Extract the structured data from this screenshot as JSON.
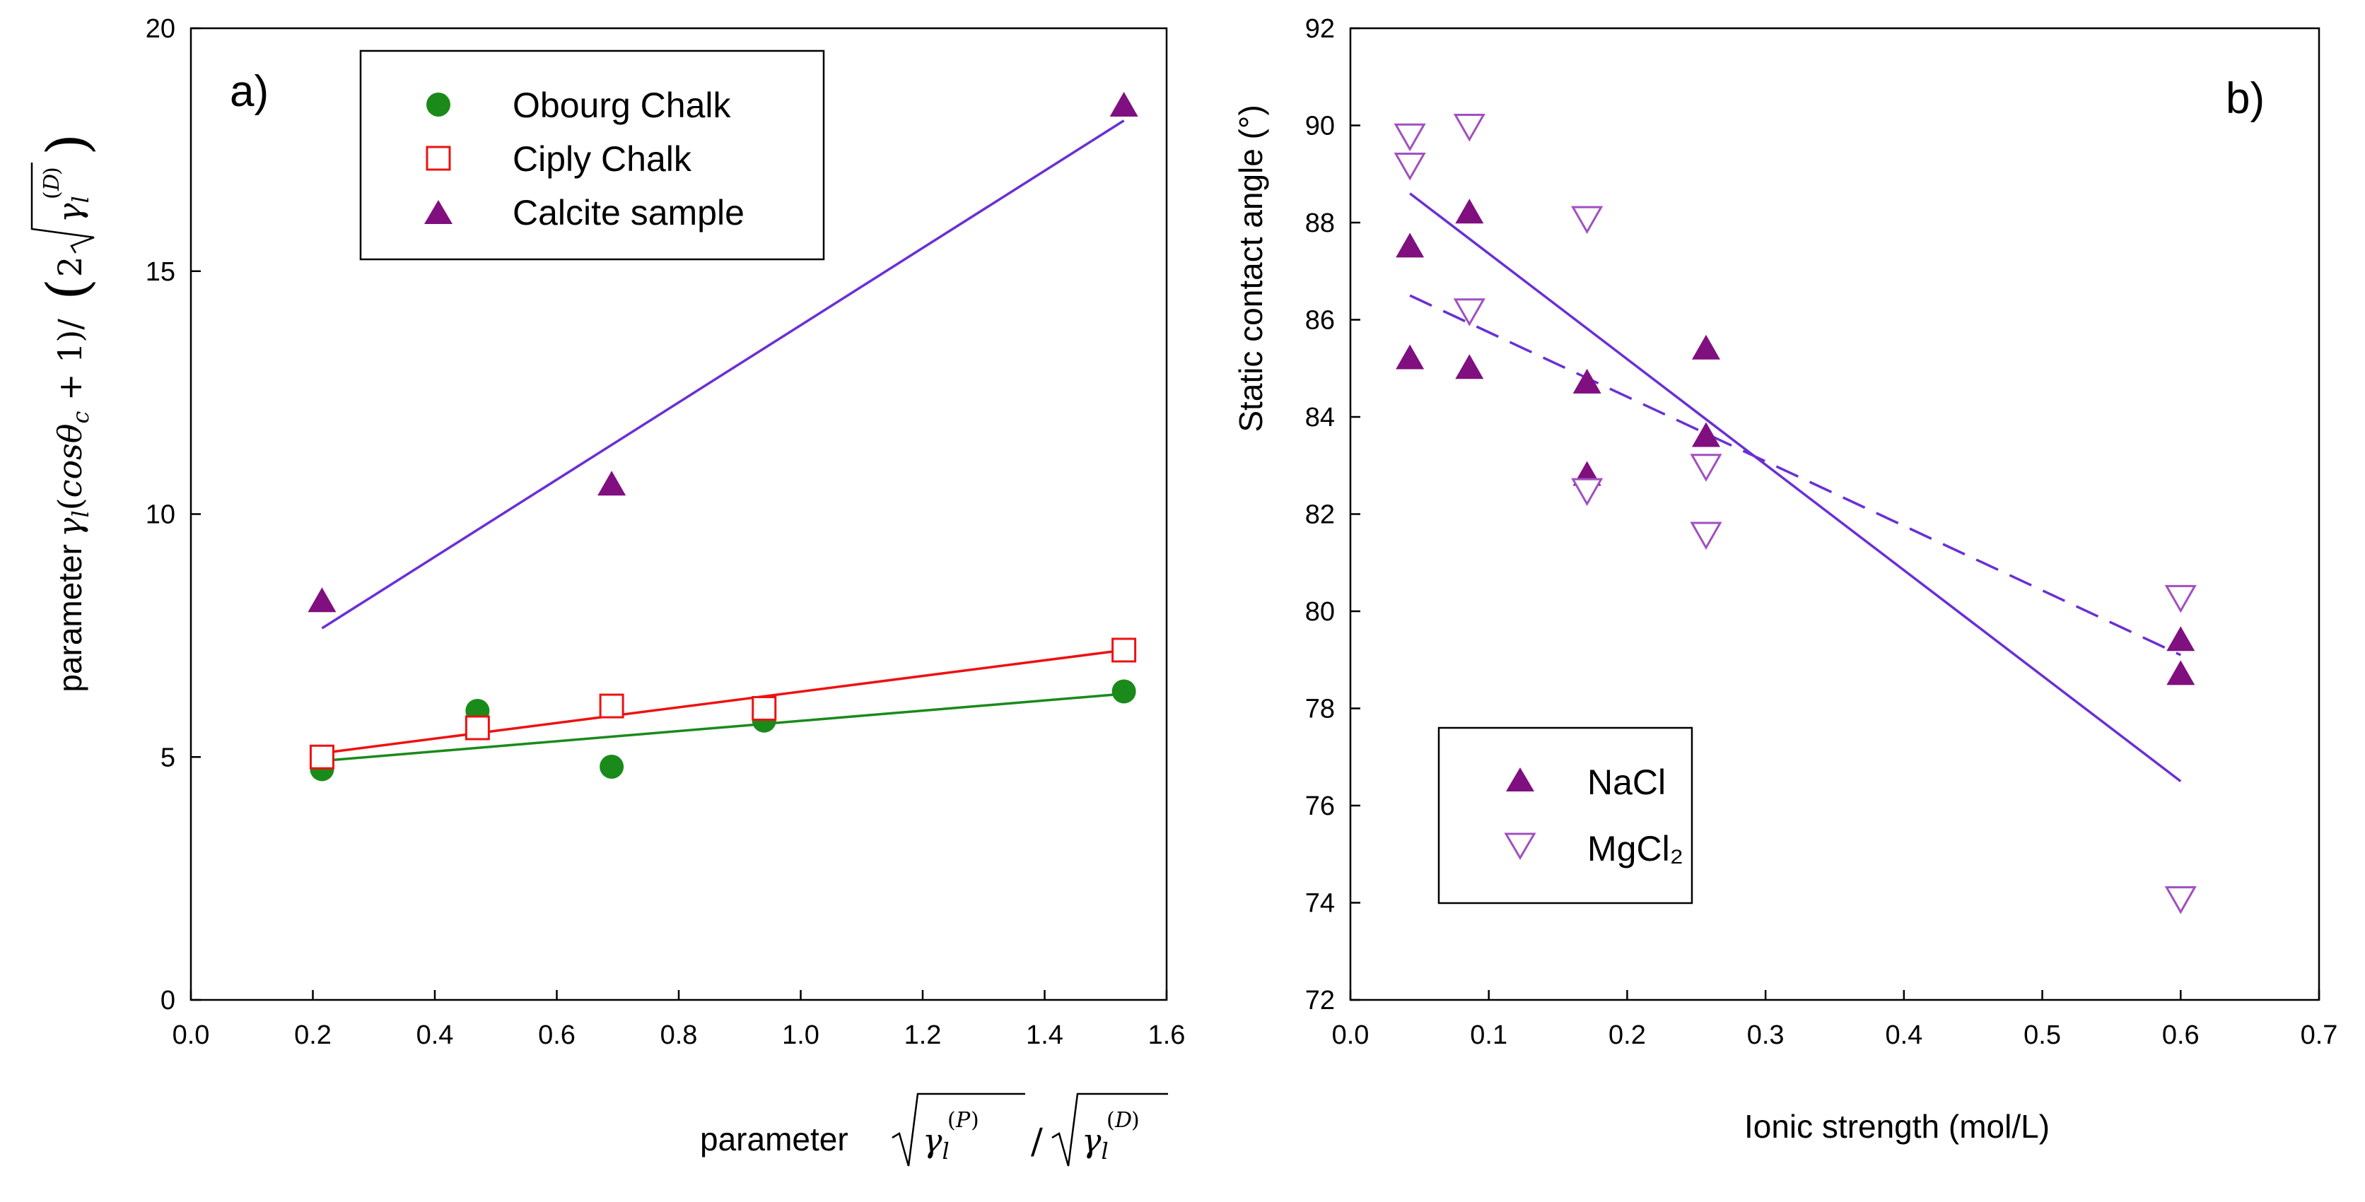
{
  "chart_data": [
    {
      "type": "scatter",
      "panel_label": "a)",
      "xlabel_prefix": "parameter",
      "ylabel_prefix": "parameter",
      "xlim": [
        0.0,
        1.6
      ],
      "ylim": [
        0,
        20
      ],
      "x_ticks": [
        "0.0",
        "0.2",
        "0.4",
        "0.6",
        "0.8",
        "1.0",
        "1.2",
        "1.4",
        "1.6"
      ],
      "y_ticks": [
        "0",
        "5",
        "10",
        "15",
        "20"
      ],
      "legend_position": "top-left",
      "series": [
        {
          "name": "Obourg Chalk",
          "marker": "circle-filled",
          "color": "#1a8a1a",
          "points": [
            [
              0.215,
              4.75
            ],
            [
              0.47,
              5.95
            ],
            [
              0.69,
              4.8
            ],
            [
              0.94,
              5.75
            ],
            [
              1.53,
              6.35
            ]
          ],
          "fit": [
            [
              0.215,
              4.92
            ],
            [
              1.53,
              6.3
            ]
          ]
        },
        {
          "name": "Ciply Chalk",
          "marker": "square-open",
          "color": "#ee1111",
          "points": [
            [
              0.215,
              5.0
            ],
            [
              0.47,
              5.6
            ],
            [
              0.69,
              6.05
            ],
            [
              0.94,
              6.0
            ],
            [
              1.53,
              7.2
            ]
          ],
          "fit": [
            [
              0.215,
              5.08
            ],
            [
              1.53,
              7.2
            ]
          ]
        },
        {
          "name": "Calcite sample",
          "marker": "triangle-up-filled",
          "color": "#800f80",
          "line_color": "#6a2fd6",
          "points": [
            [
              0.215,
              8.2
            ],
            [
              0.69,
              10.6
            ],
            [
              1.53,
              18.4
            ]
          ],
          "fit": [
            [
              0.215,
              7.65
            ],
            [
              1.53,
              18.1
            ]
          ]
        }
      ]
    },
    {
      "type": "scatter",
      "panel_label": "b)",
      "xlabel": "Ionic strength (mol/L)",
      "ylabel": "Static contact angle (°)",
      "xlim": [
        0.0,
        0.7
      ],
      "ylim": [
        72,
        92
      ],
      "x_ticks": [
        "0.0",
        "0.1",
        "0.2",
        "0.3",
        "0.4",
        "0.5",
        "0.6",
        "0.7"
      ],
      "y_ticks": [
        "72",
        "74",
        "76",
        "78",
        "80",
        "82",
        "84",
        "86",
        "88",
        "90",
        "92"
      ],
      "legend_position": "bottom-left",
      "series": [
        {
          "name": "NaCl",
          "marker": "triangle-up-filled",
          "color": "#800f80",
          "line_color": "#6a2fd6",
          "line_style": "solid",
          "points": [
            [
              0.043,
              87.5
            ],
            [
              0.043,
              85.2
            ],
            [
              0.086,
              88.2
            ],
            [
              0.086,
              85.0
            ],
            [
              0.171,
              84.7
            ],
            [
              0.171,
              82.8
            ],
            [
              0.257,
              85.4
            ],
            [
              0.257,
              83.6
            ],
            [
              0.6,
              79.4
            ],
            [
              0.6,
              78.7
            ]
          ],
          "fit": [
            [
              0.043,
              88.6
            ],
            [
              0.6,
              76.5
            ]
          ]
        },
        {
          "name": "MgCl₂",
          "marker": "triangle-down-open",
          "color": "#a050c0",
          "line_color": "#6a2fd6",
          "line_style": "dashed",
          "points": [
            [
              0.043,
              89.8
            ],
            [
              0.043,
              89.2
            ],
            [
              0.086,
              90.0
            ],
            [
              0.086,
              86.2
            ],
            [
              0.171,
              88.1
            ],
            [
              0.171,
              82.5
            ],
            [
              0.257,
              83.0
            ],
            [
              0.257,
              81.6
            ],
            [
              0.6,
              80.3
            ],
            [
              0.6,
              74.1
            ]
          ],
          "fit": [
            [
              0.043,
              86.5
            ],
            [
              0.6,
              79.1
            ]
          ]
        }
      ]
    }
  ]
}
